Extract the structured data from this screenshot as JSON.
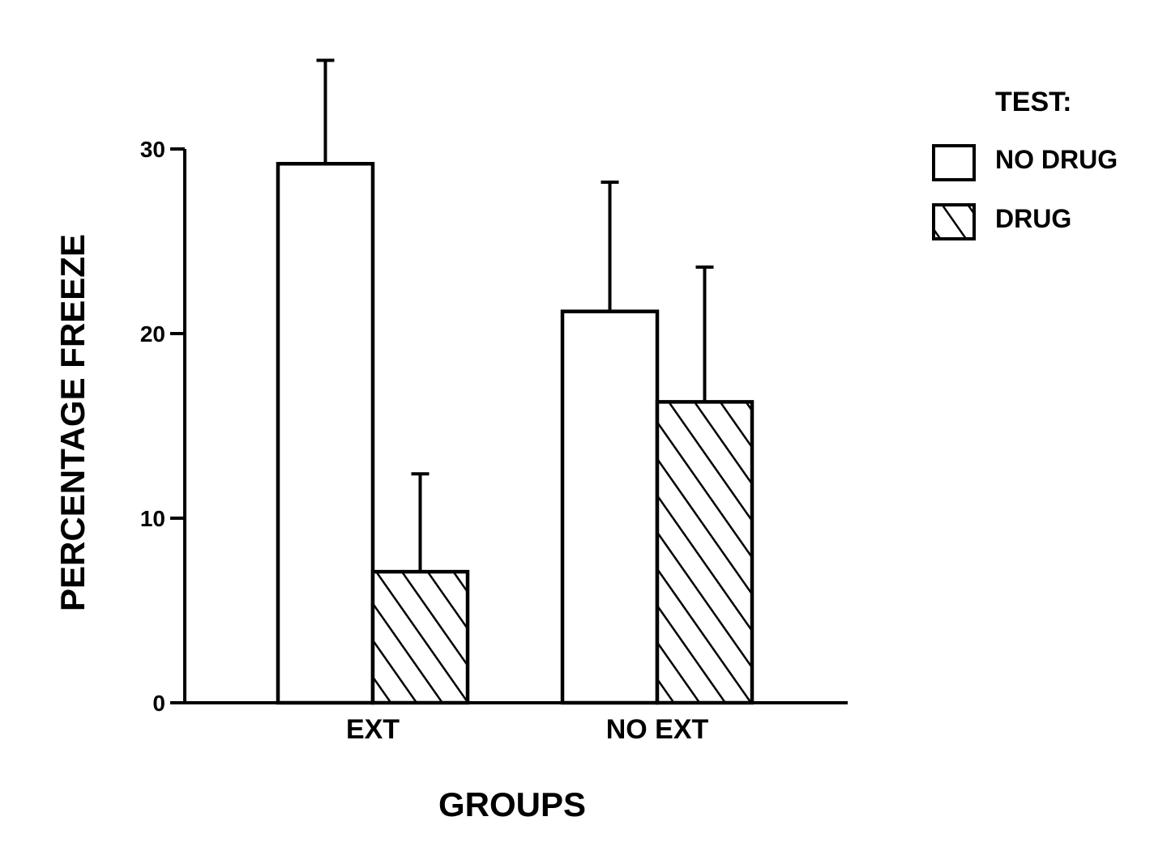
{
  "chart_data": {
    "type": "bar",
    "title": "",
    "xlabel": "GROUPS",
    "ylabel": "PERCENTAGE FREEZE",
    "ylim": [
      0,
      30
    ],
    "yticks": [
      0,
      10,
      20,
      30
    ],
    "categories": [
      "EXT",
      "NO EXT"
    ],
    "legend_title": "TEST:",
    "legend_position": "top-right",
    "grid": false,
    "series": [
      {
        "name": "NO DRUG",
        "pattern": "solid",
        "fill_color": "#ffffff",
        "values": [
          29.2,
          21.2
        ],
        "error_upper": [
          34.8,
          28.2
        ]
      },
      {
        "name": "DRUG",
        "pattern": "hatched",
        "fill_color": "#ffffff",
        "values": [
          7.1,
          16.3
        ],
        "error_upper": [
          12.4,
          23.6
        ]
      }
    ]
  }
}
